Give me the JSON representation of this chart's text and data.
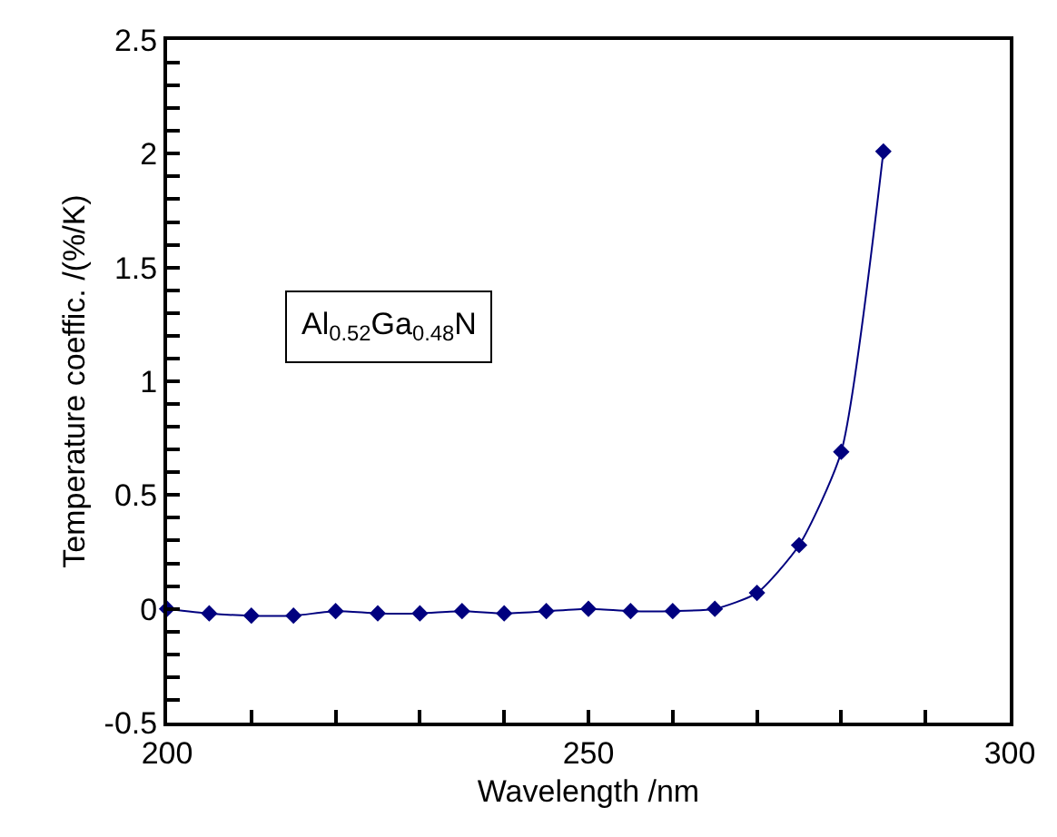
{
  "chart_data": {
    "type": "line",
    "xlabel": "Wavelength /nm",
    "ylabel": "Temperature coeffic. /(%/K)",
    "x": [
      200,
      205,
      210,
      215,
      220,
      225,
      230,
      235,
      240,
      245,
      250,
      255,
      260,
      265,
      270,
      275,
      280,
      285
    ],
    "series": [
      {
        "color": "#00007f",
        "values": [
          0,
          -0.02,
          -0.03,
          -0.03,
          -0.01,
          -0.02,
          -0.02,
          -0.01,
          -0.02,
          -0.01,
          0,
          -0.01,
          -0.01,
          0,
          0.07,
          0.28,
          0.69,
          2.01
        ]
      }
    ],
    "marker": "diamond",
    "line_style": "solid",
    "grid": false,
    "xlim": [
      200,
      300
    ],
    "xticks": [
      200,
      {
        "value": 210,
        "label": null
      },
      {
        "value": 220,
        "label": null
      },
      {
        "value": 230,
        "label": null
      },
      {
        "value": 240,
        "label": null
      },
      250,
      {
        "value": 260,
        "label": null
      },
      {
        "value": 270,
        "label": null
      },
      {
        "value": 280,
        "label": null
      },
      {
        "value": 290,
        "label": null
      },
      300
    ],
    "ylim": [
      -0.5,
      2.5
    ],
    "yticks": [
      -0.5,
      {
        "value": -0.4,
        "label": null
      },
      {
        "value": -0.3,
        "label": null
      },
      {
        "value": -0.2,
        "label": null
      },
      {
        "value": -0.1,
        "label": null
      },
      0,
      {
        "value": 0.1,
        "label": null
      },
      {
        "value": 0.2,
        "label": null
      },
      {
        "value": 0.3,
        "label": null
      },
      {
        "value": 0.4,
        "label": null
      },
      0.5,
      {
        "value": 0.6,
        "label": null
      },
      {
        "value": 0.7,
        "label": null
      },
      {
        "value": 0.8,
        "label": null
      },
      {
        "value": 0.9,
        "label": null
      },
      1,
      {
        "value": 1.1,
        "label": null
      },
      {
        "value": 1.2,
        "label": null
      },
      {
        "value": 1.3,
        "label": null
      },
      {
        "value": 1.4,
        "label": null
      },
      1.5,
      {
        "value": 1.6,
        "label": null
      },
      {
        "value": 1.7,
        "label": null
      },
      {
        "value": 1.8,
        "label": null
      },
      {
        "value": 1.9,
        "label": null
      },
      2,
      {
        "value": 2.1,
        "label": null
      },
      {
        "value": 2.2,
        "label": null
      },
      {
        "value": 2.3,
        "label": null
      },
      {
        "value": 2.4,
        "label": null
      },
      2.5
    ],
    "annotations": [
      "Al$_{0.52}$Ga$_{0.48}$N"
    ]
  }
}
